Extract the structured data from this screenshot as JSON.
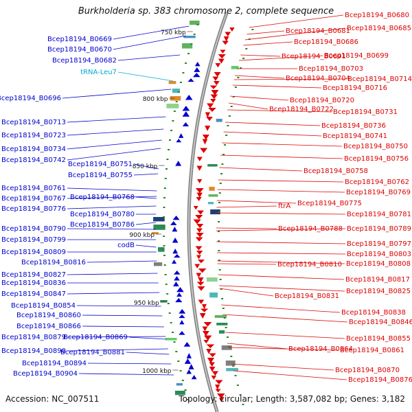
{
  "title": "Burkholderia sp. 383 chromosome 2, complete sequence",
  "footer": {
    "accession": "Accession: NC_007511",
    "topology": "Topology: circular; Length: 3,587,082 bp; Genes: 3,182"
  },
  "colors": {
    "left_genes": "#0000cc",
    "right_genes": "#dd0000",
    "trna": "#00aacc",
    "ticks": "#228822",
    "backbone": "#888888"
  },
  "scale_labels": [
    {
      "text": "750 kbp",
      "kbp": 750
    },
    {
      "text": "800 kbp",
      "kbp": 800
    },
    {
      "text": "850 kbp",
      "kbp": 850
    },
    {
      "text": "900 kbp",
      "kbp": 900
    },
    {
      "text": "950 kbp",
      "kbp": 950
    },
    {
      "text": "1000 kbp",
      "kbp": 1000
    }
  ],
  "left_labels": [
    {
      "text": "Bcep18194_B0669",
      "type": "gene"
    },
    {
      "text": "Bcep18194_B0670",
      "type": "gene"
    },
    {
      "text": "Bcep18194_B0682",
      "type": "gene"
    },
    {
      "text": "tRNA-Leu7",
      "type": "trna"
    },
    {
      "text": "Bcep18194_B0696",
      "type": "gene"
    },
    {
      "text": "Bcep18194_B0713",
      "type": "gene"
    },
    {
      "text": "Bcep18194_B0723",
      "type": "gene"
    },
    {
      "text": "Bcep18194_B0734",
      "type": "gene"
    },
    {
      "text": "Bcep18194_B0742",
      "type": "gene"
    },
    {
      "text": "Bcep18194_B0751",
      "type": "gene"
    },
    {
      "text": "Bcep18194_B0755",
      "type": "gene"
    },
    {
      "text": "Bcep18194_B0761",
      "type": "gene"
    },
    {
      "text": "Bcep18194_B0767",
      "type": "gene"
    },
    {
      "text": "Bcep18194_B0768",
      "type": "gene"
    },
    {
      "text": "Bcep18194_B0776",
      "type": "gene"
    },
    {
      "text": "Bcep18194_B0780",
      "type": "gene"
    },
    {
      "text": "Bcep18194_B0786",
      "type": "gene"
    },
    {
      "text": "Bcep18194_B0790",
      "type": "gene"
    },
    {
      "text": "Bcep18194_B0799",
      "type": "gene"
    },
    {
      "text": "codB",
      "type": "gene"
    },
    {
      "text": "Bcep18194_B0809",
      "type": "gene"
    },
    {
      "text": "Bcep18194_B0816",
      "type": "gene"
    },
    {
      "text": "Bcep18194_B0827",
      "type": "gene"
    },
    {
      "text": "Bcep18194_B0836",
      "type": "gene"
    },
    {
      "text": "Bcep18194_B0847",
      "type": "gene"
    },
    {
      "text": "Bcep18194_B0854",
      "type": "gene"
    },
    {
      "text": "Bcep18194_B0860",
      "type": "gene"
    },
    {
      "text": "Bcep18194_B0866",
      "type": "gene"
    },
    {
      "text": "Bcep18194_B0879",
      "type": "gene"
    },
    {
      "text": "Bcep18194_B0869",
      "type": "gene"
    },
    {
      "text": "Bcep18194_B0890",
      "type": "gene"
    },
    {
      "text": "Bcep18194_B0881",
      "type": "gene"
    },
    {
      "text": "Bcep18194_B0894",
      "type": "gene"
    },
    {
      "text": "Bcep18194_B0904",
      "type": "gene"
    }
  ],
  "right_labels": [
    {
      "text": "Bcep18194_B0680"
    },
    {
      "text": "Bcep18194_B0681"
    },
    {
      "text": "Bcep18194_B0685"
    },
    {
      "text": "Bcep18194_B0686"
    },
    {
      "text": "Bcep18194_B0691"
    },
    {
      "text": "Bcep18194_B0699"
    },
    {
      "text": "Bcep18194_B0703"
    },
    {
      "text": "Bcep18194_B0704"
    },
    {
      "text": "Bcep18194_B0714"
    },
    {
      "text": "Bcep18194_B0716"
    },
    {
      "text": "Bcep18194_B0720"
    },
    {
      "text": "Bcep18194_B0722"
    },
    {
      "text": "Bcep18194_B0731"
    },
    {
      "text": "Bcep18194_B0736"
    },
    {
      "text": "Bcep18194_B0741"
    },
    {
      "text": "Bcep18194_B0750"
    },
    {
      "text": "Bcep18194_B0756"
    },
    {
      "text": "Bcep18194_B0758"
    },
    {
      "text": "Bcep18194_B0762"
    },
    {
      "text": "Bcep18194_B0769"
    },
    {
      "text": "Bcep18194_B0775"
    },
    {
      "text": "ftrA"
    },
    {
      "text": "Bcep18194_B0781"
    },
    {
      "text": "Bcep18194_B0788"
    },
    {
      "text": "Bcep18194_B0789"
    },
    {
      "text": "Bcep18194_B0797"
    },
    {
      "text": "Bcep18194_B0803"
    },
    {
      "text": "Bcep18194_B0810"
    },
    {
      "text": "Bcep18194_B0808"
    },
    {
      "text": "Bcep18194_B0817"
    },
    {
      "text": "Bcep18194_B0831"
    },
    {
      "text": "Bcep18194_B0825"
    },
    {
      "text": "Bcep18194_B0838"
    },
    {
      "text": "Bcep18194_B0846"
    },
    {
      "text": "Bcep18194_B0855"
    },
    {
      "text": "Bcep18194_B0864"
    },
    {
      "text": "Bcep18194_B0861"
    },
    {
      "text": "Bcep18194_B0870"
    },
    {
      "text": "Bcep18194_B0876"
    }
  ]
}
